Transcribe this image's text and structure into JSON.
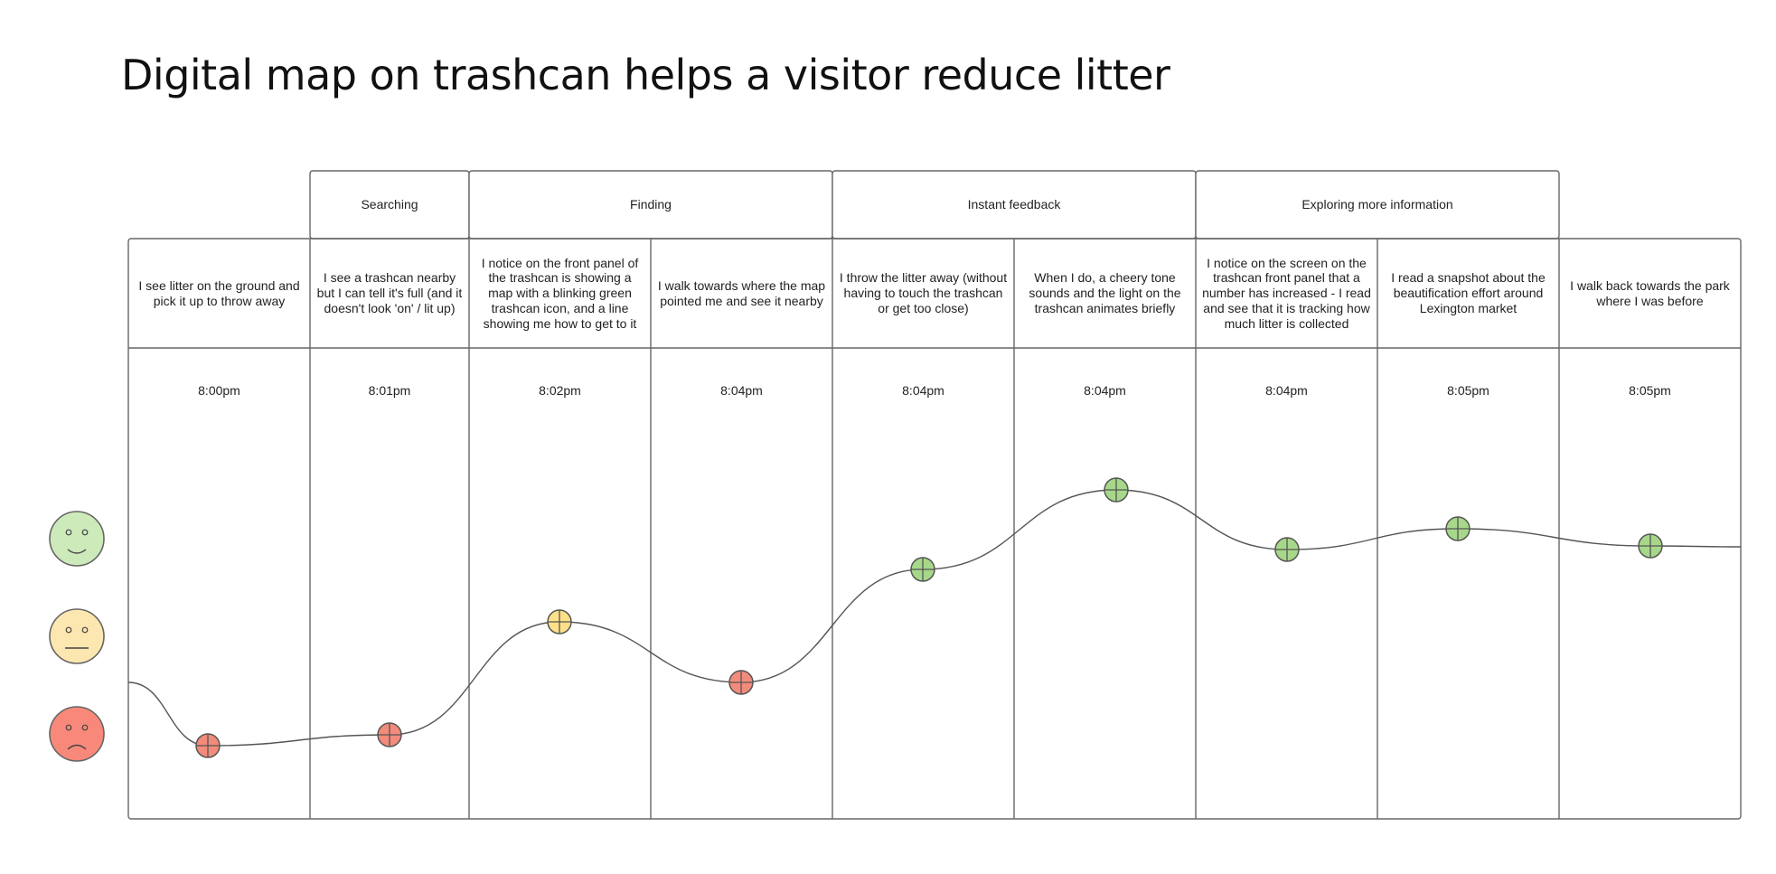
{
  "title": "Digital map on trashcan helps a visitor reduce litter",
  "phases": [
    {
      "label": "Searching",
      "start": 1,
      "span": 1
    },
    {
      "label": "Finding",
      "start": 2,
      "span": 2
    },
    {
      "label": "Instant feedback",
      "start": 4,
      "span": 2
    },
    {
      "label": "Exploring more information",
      "start": 6,
      "span": 2
    }
  ],
  "steps": [
    {
      "action": "I see litter on the ground and pick it up to throw away",
      "time": "8:00pm",
      "sentiment": "negative"
    },
    {
      "action": "I see a trashcan nearby but I can tell it's full (and it doesn't look 'on' / lit up)",
      "time": "8:01pm",
      "sentiment": "negative"
    },
    {
      "action": "I notice on the front panel of the trashcan is showing a map with a blinking green trashcan icon, and a line showing me how to get to it",
      "time": "8:02pm",
      "sentiment": "neutral"
    },
    {
      "action": "I walk towards where the map pointed me and see it nearby",
      "time": "8:04pm",
      "sentiment": "negative"
    },
    {
      "action": "I throw the litter away (without having to touch the trashcan or get too close)",
      "time": "8:04pm",
      "sentiment": "positive"
    },
    {
      "action": "When I do, a cheery tone sounds and the light on the trashcan animates briefly",
      "time": "8:04pm",
      "sentiment": "positive"
    },
    {
      "action": "I notice on the screen on the trashcan front panel that a number has increased - I read and see that it is tracking how much litter is collected",
      "time": "8:04pm",
      "sentiment": "positive"
    },
    {
      "action": "I read a snapshot about the beautification effort around Lexington market",
      "time": "8:05pm",
      "sentiment": "positive"
    },
    {
      "action": "I walk back towards the park where I was before",
      "time": "8:05pm",
      "sentiment": "positive"
    }
  ],
  "emotion_levels": [
    "positive",
    "neutral",
    "negative"
  ],
  "colors": {
    "positive": "#a7d88a",
    "neutral": "#ffe08a",
    "negative": "#f28b7b",
    "face_positive": "#cdeaba",
    "face_neutral": "#fde7b0",
    "face_negative": "#f8897a",
    "line": "#555555"
  }
}
